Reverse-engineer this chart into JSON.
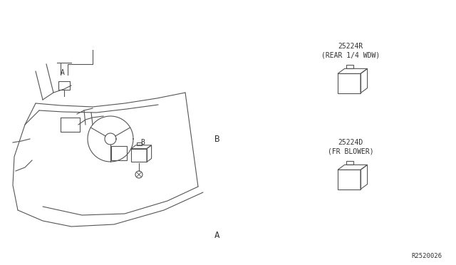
{
  "bg_color": "#ffffff",
  "line_color": "#555555",
  "text_color": "#333333",
  "title_ref": "R2520026",
  "label_A_main": "A",
  "label_B_main": "B",
  "part1_code": "25224R",
  "part1_desc": "(REAR 1/4 WDW)",
  "part2_code": "25224D",
  "part2_desc": "(FR BLOWER)",
  "figsize": [
    6.4,
    3.72
  ],
  "dpi": 100
}
